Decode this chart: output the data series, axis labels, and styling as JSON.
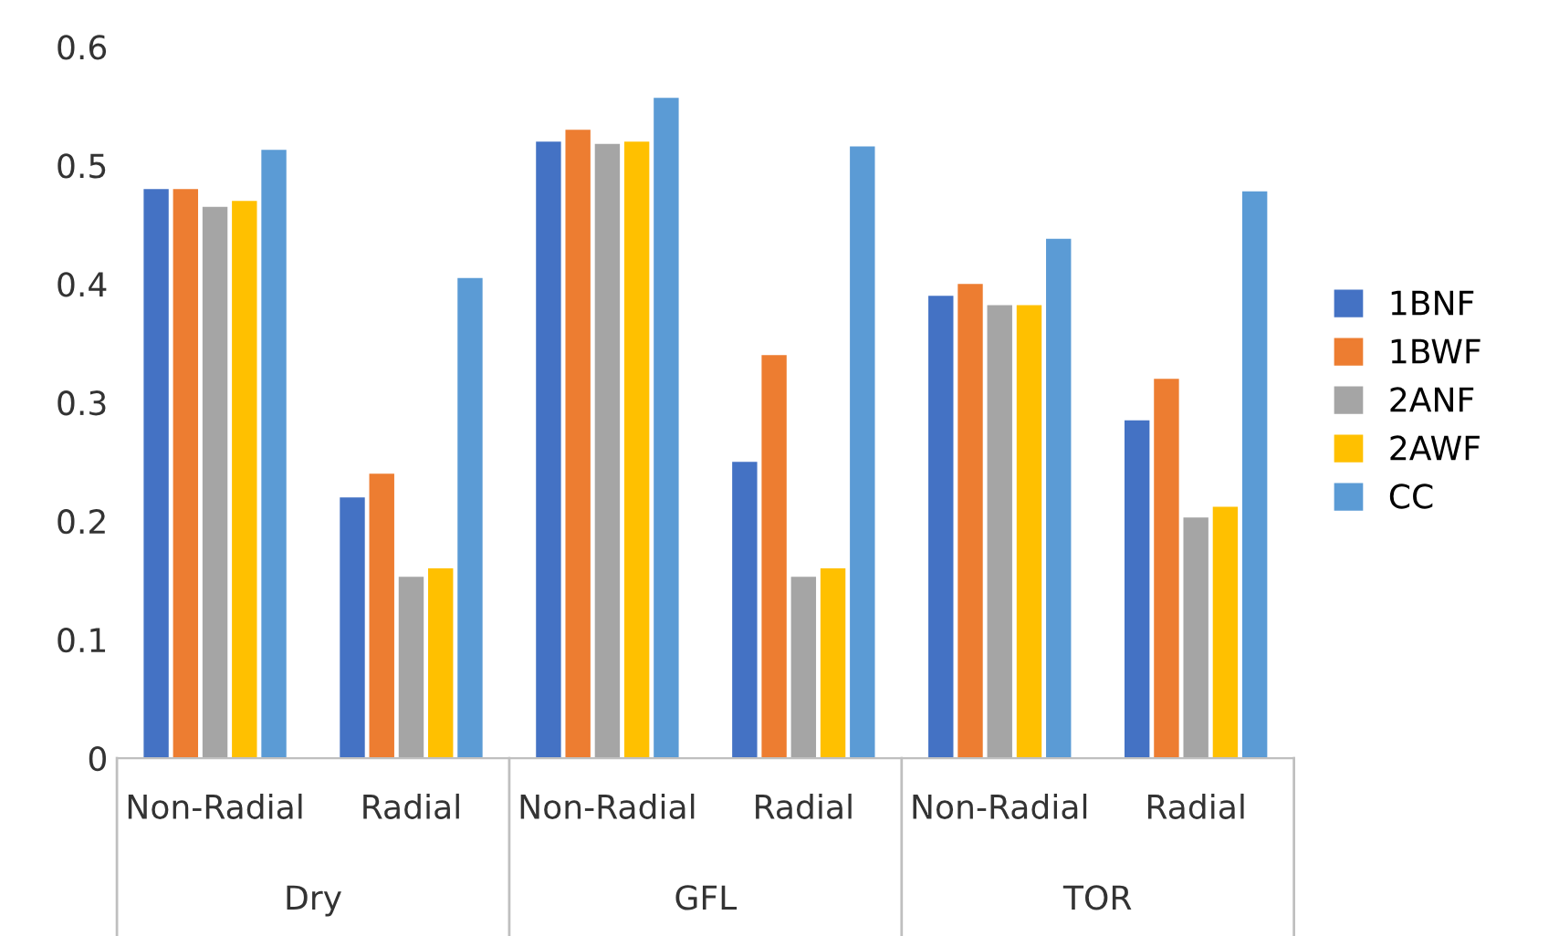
{
  "chart_data": {
    "type": "bar",
    "categories": [
      "Non-Radial",
      "Radial",
      "Non-Radial",
      "Radial",
      "Non-Radial",
      "Radial"
    ],
    "annotations": [
      "Dry",
      "GFL",
      "TOR"
    ],
    "series": [
      {
        "name": "1BNF",
        "color": "#4472c4",
        "values": [
          0.48,
          0.22,
          0.52,
          0.25,
          0.39,
          0.285
        ]
      },
      {
        "name": "1BWF",
        "color": "#ed7d31",
        "values": [
          0.48,
          0.24,
          0.53,
          0.34,
          0.4,
          0.32
        ]
      },
      {
        "name": "2ANF",
        "color": "#a5a5a5",
        "values": [
          0.465,
          0.153,
          0.518,
          0.153,
          0.382,
          0.203
        ]
      },
      {
        "name": "2AWF",
        "color": "#ffc000",
        "values": [
          0.47,
          0.16,
          0.52,
          0.16,
          0.382,
          0.212
        ]
      },
      {
        "name": "CC",
        "color": "#5b9bd5",
        "values": [
          0.513,
          0.405,
          0.557,
          0.516,
          0.438,
          0.478
        ]
      }
    ],
    "ylim": [
      0,
      0.6
    ],
    "yticks": [
      0,
      0.1,
      0.2,
      0.3,
      0.4,
      0.5,
      0.6
    ],
    "grid": false,
    "legend": "right"
  }
}
